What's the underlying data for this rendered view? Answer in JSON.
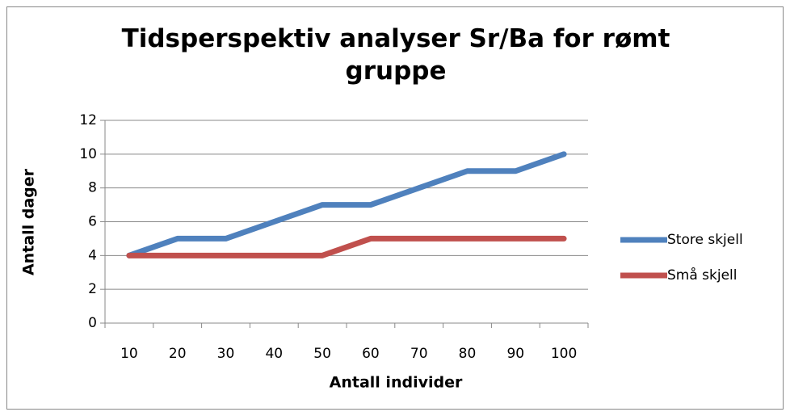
{
  "chart_data": {
    "type": "line",
    "title": "Tidsperspektiv analyser Sr/Ba for rømt gruppe",
    "x_label": "Antall individer",
    "y_label": "Antall dager",
    "categories": [
      "10",
      "20",
      "30",
      "40",
      "50",
      "60",
      "70",
      "80",
      "90",
      "100"
    ],
    "series": [
      {
        "name": "Store skjell",
        "color": "#4f81bd",
        "values": [
          4,
          5,
          5,
          6,
          7,
          7,
          8,
          9,
          9,
          10
        ]
      },
      {
        "name": "Små skjell",
        "color": "#c0504d",
        "values": [
          4,
          4,
          4,
          4,
          4,
          5,
          5,
          5,
          5,
          5
        ]
      }
    ],
    "ylim": [
      0,
      12
    ],
    "yticks": [
      0,
      2,
      4,
      6,
      8,
      10,
      12
    ],
    "grid": true,
    "legend": "right"
  }
}
